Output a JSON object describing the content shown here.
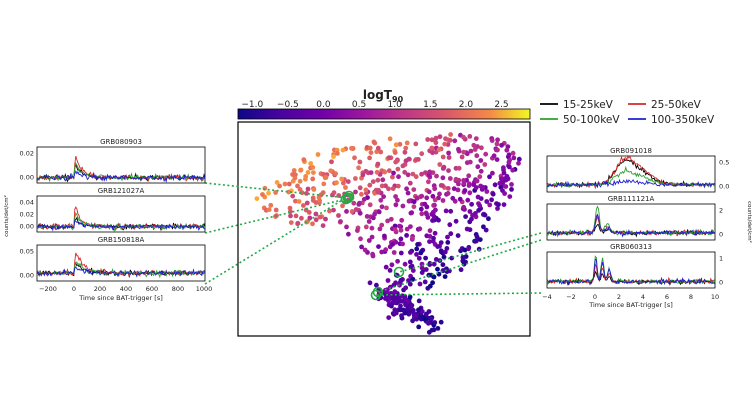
{
  "colorbar": {
    "title": "logT90",
    "title_main": "logT",
    "title_sub": "90",
    "ticks": [
      "−1.0",
      "−0.5",
      "0.0",
      "0.5",
      "1.0",
      "1.5",
      "2.0",
      "2.5"
    ],
    "range": [
      -1.2,
      2.9
    ],
    "colormap": "plasma"
  },
  "legend": {
    "items": [
      {
        "label": "15-25keV",
        "color": "#000000"
      },
      {
        "label": "25-50keV",
        "color": "#d62728"
      },
      {
        "label": "50-100keV",
        "color": "#2ca02c"
      },
      {
        "label": "100-350keV",
        "color": "#1f1fd0"
      }
    ]
  },
  "left_panels": [
    {
      "name": "GRB080903",
      "yticks": [
        "0.02",
        "0.00"
      ]
    },
    {
      "name": "GRB121027A",
      "yticks": [
        "0.04",
        "0.02",
        "0.00"
      ]
    },
    {
      "name": "GRB150818A",
      "yticks": [
        "0.05",
        "0.00"
      ]
    }
  ],
  "left_xaxis": {
    "ticks": [
      "−200",
      "0",
      "200",
      "400",
      "600",
      "800",
      "1000"
    ],
    "label": "Time since BAT-trigger [s]"
  },
  "left_ylabel": "counts/det/cm²",
  "right_panels": [
    {
      "name": "GRB091018",
      "yticks": [
        "0.5",
        "0.0"
      ]
    },
    {
      "name": "GRB111121A",
      "yticks": [
        "2",
        "0"
      ]
    },
    {
      "name": "GRB060313",
      "yticks": [
        "1",
        "0"
      ]
    }
  ],
  "right_xaxis": {
    "ticks": [
      "−4",
      "−2",
      "0",
      "2",
      "4",
      "6",
      "8",
      "10"
    ],
    "label": "Time since BAT-trigger [s]"
  },
  "right_ylabel": "counts/det/cm²",
  "chart_data": [
    {
      "type": "scatter",
      "title": "",
      "description_of_color": "logT90",
      "color_range": [
        -1.2,
        2.9
      ],
      "highlighted": [
        "GRB080903",
        "GRB121027A",
        "GRB150818A",
        "GRB091018",
        "GRB111121A",
        "GRB060313"
      ],
      "legend": "none"
    },
    {
      "type": "line",
      "series": [
        {
          "name": "15-25keV",
          "color": "#000000"
        },
        {
          "name": "25-50keV",
          "color": "#d62728"
        },
        {
          "name": "50-100keV",
          "color": "#2ca02c"
        },
        {
          "name": "100-350keV",
          "color": "#1f1fd0"
        }
      ],
      "xlim": [
        -250,
        1000
      ],
      "xlabel": "Time since BAT-trigger [s]",
      "ylabel": "counts/det/cm²",
      "panels": [
        "GRB080903",
        "GRB121027A",
        "GRB150818A"
      ]
    },
    {
      "type": "line",
      "series": [
        {
          "name": "15-25keV",
          "color": "#000000"
        },
        {
          "name": "25-50keV",
          "color": "#d62728"
        },
        {
          "name": "50-100keV",
          "color": "#2ca02c"
        },
        {
          "name": "100-350keV",
          "color": "#1f1fd0"
        }
      ],
      "xlim": [
        -4,
        10
      ],
      "xlabel": "Time since BAT-trigger [s]",
      "ylabel": "counts/det/cm²",
      "panels": [
        "GRB091018",
        "GRB111121A",
        "GRB060313"
      ]
    }
  ]
}
